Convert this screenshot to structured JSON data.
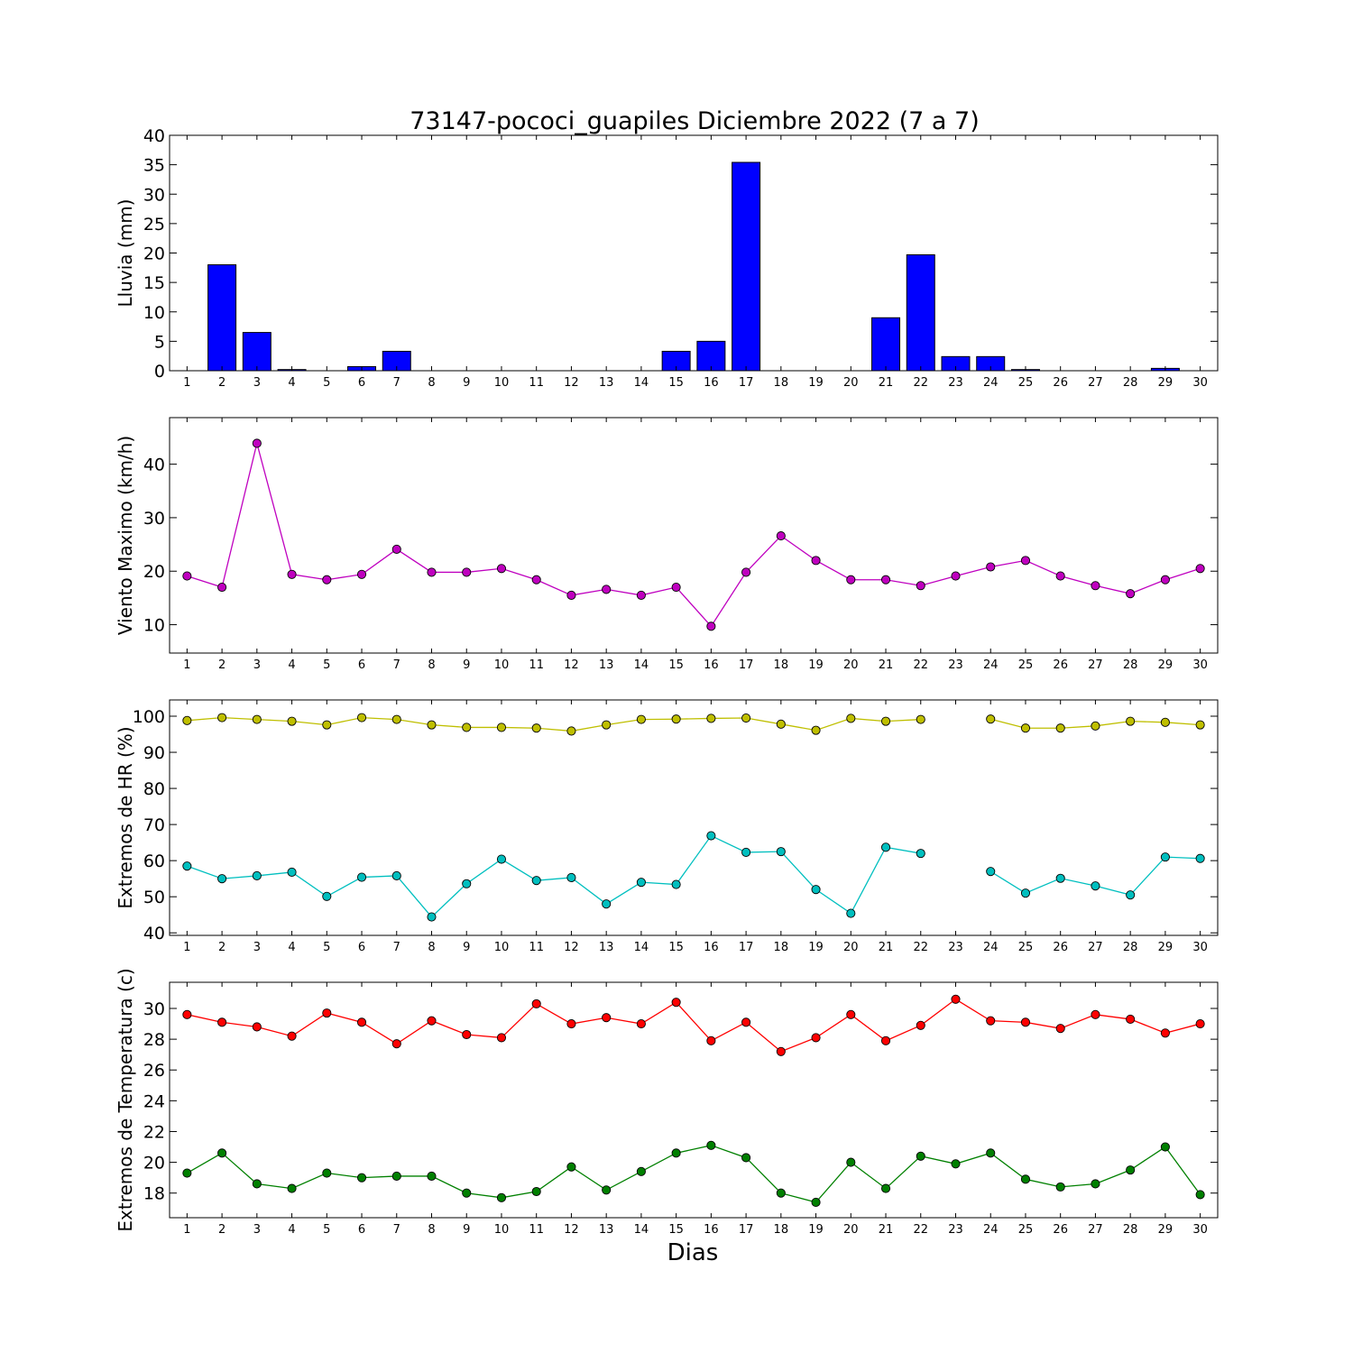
{
  "title": "73147-pococi_guapiles Diciembre 2022  (7 a 7)",
  "xlabel": "Dias",
  "chart_data": [
    {
      "type": "bar",
      "ylabel": "Lluvia (mm)",
      "ylim": [
        0,
        40
      ],
      "yticks": [
        0,
        5,
        10,
        15,
        20,
        25,
        30,
        35,
        40
      ],
      "x": [
        1,
        2,
        3,
        4,
        5,
        6,
        7,
        8,
        9,
        10,
        11,
        12,
        13,
        14,
        15,
        16,
        17,
        18,
        19,
        20,
        21,
        22,
        23,
        24,
        25,
        26,
        27,
        28,
        29,
        30
      ],
      "xlim": [
        0.5,
        30.5
      ],
      "series": [
        {
          "color": "#0000ff",
          "values": [
            0,
            18.0,
            6.5,
            0.2,
            0,
            0.7,
            3.3,
            0,
            0,
            0,
            0,
            0,
            0,
            0,
            3.3,
            5.0,
            35.4,
            0,
            0,
            0,
            9.0,
            19.7,
            2.4,
            2.4,
            0.2,
            0,
            0,
            0,
            0.4,
            0
          ]
        }
      ]
    },
    {
      "type": "line",
      "ylabel": "Viento Maximo (km/h)",
      "ylim": [
        4.7,
        48.7
      ],
      "yticks": [
        10,
        20,
        30,
        40
      ],
      "x": [
        1,
        2,
        3,
        4,
        5,
        6,
        7,
        8,
        9,
        10,
        11,
        12,
        13,
        14,
        15,
        16,
        17,
        18,
        19,
        20,
        21,
        22,
        23,
        24,
        25,
        26,
        27,
        28,
        29,
        30
      ],
      "xlim": [
        0.5,
        30.5
      ],
      "series": [
        {
          "color": "#bf00bf",
          "values": [
            19.1,
            17.0,
            43.9,
            19.4,
            18.4,
            19.4,
            24.1,
            19.8,
            19.8,
            20.5,
            18.4,
            15.5,
            16.6,
            15.5,
            17.0,
            9.7,
            19.8,
            26.6,
            22.0,
            18.4,
            18.4,
            17.3,
            19.1,
            20.8,
            22.0,
            19.1,
            17.3,
            15.8,
            18.4,
            20.5
          ]
        }
      ]
    },
    {
      "type": "line",
      "ylabel": "Extremos de HR (%)",
      "ylim": [
        39.3,
        104.5
      ],
      "yticks": [
        40,
        50,
        60,
        70,
        80,
        90,
        100
      ],
      "x": [
        1,
        2,
        3,
        4,
        5,
        6,
        7,
        8,
        9,
        10,
        11,
        12,
        13,
        14,
        15,
        16,
        17,
        18,
        19,
        20,
        21,
        22,
        23,
        24,
        25,
        26,
        27,
        28,
        29,
        30
      ],
      "xlim": [
        0.5,
        30.5
      ],
      "series": [
        {
          "color": "#bfbf00",
          "values": [
            98.8,
            99.6,
            99.1,
            98.6,
            97.6,
            99.6,
            99.1,
            97.6,
            96.9,
            96.9,
            96.7,
            95.9,
            97.6,
            99.1,
            99.2,
            99.4,
            99.5,
            97.8,
            96.1,
            99.4,
            98.6,
            99.1,
            null,
            99.2,
            96.7,
            96.7,
            97.3,
            98.6,
            98.3,
            97.6
          ]
        },
        {
          "color": "#00bfbf",
          "values": [
            58.5,
            55.0,
            55.8,
            56.8,
            50.1,
            55.4,
            55.8,
            44.4,
            53.6,
            60.4,
            54.5,
            55.3,
            48.0,
            54.0,
            53.4,
            66.9,
            62.3,
            62.5,
            52.0,
            45.4,
            63.7,
            62.0,
            null,
            57.0,
            51.0,
            55.1,
            53.0,
            50.5,
            61.0,
            60.6
          ]
        }
      ]
    },
    {
      "type": "line",
      "ylabel": "Extremos de Temperatura (c)",
      "ylim": [
        16.4,
        31.7
      ],
      "yticks": [
        18,
        20,
        22,
        24,
        26,
        28,
        30
      ],
      "x": [
        1,
        2,
        3,
        4,
        5,
        6,
        7,
        8,
        9,
        10,
        11,
        12,
        13,
        14,
        15,
        16,
        17,
        18,
        19,
        20,
        21,
        22,
        23,
        24,
        25,
        26,
        27,
        28,
        29,
        30
      ],
      "xlim": [
        0.5,
        30.5
      ],
      "series": [
        {
          "color": "#ff0000",
          "values": [
            29.6,
            29.1,
            28.8,
            28.2,
            29.7,
            29.1,
            27.7,
            29.2,
            28.3,
            28.1,
            30.3,
            29.0,
            29.4,
            29.0,
            30.4,
            27.9,
            29.1,
            27.2,
            28.1,
            29.6,
            27.9,
            28.9,
            30.6,
            29.2,
            29.1,
            28.7,
            29.6,
            29.3,
            28.4,
            29.0
          ]
        },
        {
          "color": "#008000",
          "values": [
            19.3,
            20.6,
            18.6,
            18.3,
            19.3,
            19.0,
            19.1,
            19.1,
            18.0,
            17.7,
            18.1,
            19.7,
            18.2,
            19.4,
            20.6,
            21.1,
            20.3,
            18.0,
            17.4,
            20.0,
            18.3,
            20.4,
            19.9,
            20.6,
            18.9,
            18.4,
            18.6,
            19.5,
            21.0,
            17.9
          ]
        }
      ]
    }
  ]
}
